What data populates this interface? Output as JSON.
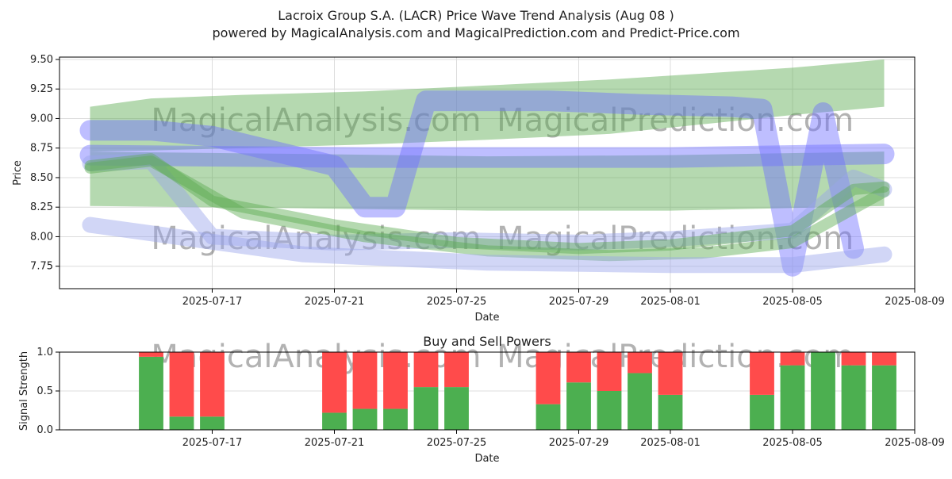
{
  "title": "Lacroix Group S.A. (LACR) Price Wave Trend Analysis (Aug 08 )",
  "subtitle": "powered by MagicalAnalysis.com and MagicalPrediction.com and Predict-Price.com",
  "watermarks": [
    "MagicalAnalysis.com",
    "MagicalPrediction.com"
  ],
  "colors": {
    "buy": "#4caf50",
    "sell": "#ff4b4b",
    "blue_band": "#6f6fff",
    "green_band": "#5aaa50"
  },
  "chart_data": [
    {
      "type": "area",
      "title": "",
      "xlabel": "Date",
      "ylabel": "Price",
      "xlim": [
        "2025-07-12",
        "2025-08-09"
      ],
      "ylim": [
        7.56,
        9.52
      ],
      "x_ticks": [
        "2025-07-17",
        "2025-07-21",
        "2025-07-25",
        "2025-07-29",
        "2025-08-01",
        "2025-08-05",
        "2025-08-09"
      ],
      "y_ticks": [
        7.75,
        8.0,
        8.25,
        8.5,
        8.75,
        9.0,
        9.25,
        9.5
      ],
      "grid": true,
      "series": [
        {
          "kind": "band",
          "color": "green",
          "x": [
            "2025-07-13",
            "2025-07-15",
            "2025-07-18",
            "2025-07-22",
            "2025-07-26",
            "2025-07-30",
            "2025-08-02",
            "2025-08-05",
            "2025-08-08"
          ],
          "upper": [
            9.1,
            9.17,
            9.2,
            9.23,
            9.28,
            9.33,
            9.38,
            9.43,
            9.5
          ],
          "lower": [
            8.72,
            8.73,
            8.75,
            8.78,
            8.82,
            8.87,
            8.95,
            9.03,
            9.1
          ]
        },
        {
          "kind": "band",
          "color": "green",
          "x": [
            "2025-07-13",
            "2025-07-20",
            "2025-07-26",
            "2025-08-01",
            "2025-08-08"
          ],
          "upper": [
            8.72,
            8.7,
            8.68,
            8.69,
            8.72
          ],
          "lower": [
            8.26,
            8.24,
            8.22,
            8.22,
            8.26
          ]
        },
        {
          "kind": "line",
          "color": "blue",
          "x": [
            "2025-07-13",
            "2025-07-15",
            "2025-07-17",
            "2025-07-21",
            "2025-07-22",
            "2025-07-23",
            "2025-07-24",
            "2025-07-28",
            "2025-07-31",
            "2025-08-03",
            "2025-08-04",
            "2025-08-05",
            "2025-08-06",
            "2025-08-07"
          ],
          "y": [
            8.9,
            8.9,
            8.85,
            8.6,
            8.25,
            8.25,
            9.15,
            9.15,
            9.12,
            9.1,
            9.08,
            7.75,
            9.05,
            7.9
          ]
        },
        {
          "kind": "line",
          "color": "blue",
          "x": [
            "2025-07-13",
            "2025-07-22",
            "2025-08-01",
            "2025-08-08"
          ],
          "y": [
            8.69,
            8.67,
            8.67,
            8.7
          ]
        },
        {
          "kind": "line",
          "color": "lightblue",
          "x": [
            "2025-07-13",
            "2025-07-15",
            "2025-07-17",
            "2025-07-21",
            "2025-07-25",
            "2025-07-29",
            "2025-08-01",
            "2025-08-05",
            "2025-08-07",
            "2025-08-08"
          ],
          "y": [
            8.62,
            8.64,
            8.0,
            7.95,
            7.97,
            7.95,
            7.98,
            8.05,
            8.5,
            8.4
          ]
        },
        {
          "kind": "line",
          "color": "green",
          "x": [
            "2025-07-13",
            "2025-07-15",
            "2025-07-17",
            "2025-07-21",
            "2025-07-25",
            "2025-07-29",
            "2025-08-01",
            "2025-08-05",
            "2025-08-07",
            "2025-08-08"
          ],
          "y": [
            8.6,
            8.66,
            8.3,
            8.1,
            7.95,
            7.9,
            7.93,
            8.05,
            8.4,
            8.42
          ]
        },
        {
          "kind": "line",
          "color": "green",
          "x": [
            "2025-07-13",
            "2025-07-15",
            "2025-07-18",
            "2025-07-22",
            "2025-07-26",
            "2025-07-30",
            "2025-08-02",
            "2025-08-05",
            "2025-08-08"
          ],
          "y": [
            8.58,
            8.64,
            8.2,
            8.0,
            7.88,
            7.84,
            7.86,
            7.95,
            8.38
          ]
        },
        {
          "kind": "line",
          "color": "lightblue",
          "x": [
            "2025-07-13",
            "2025-07-20",
            "2025-07-26",
            "2025-08-01",
            "2025-08-05",
            "2025-08-08"
          ],
          "y": [
            8.1,
            7.85,
            7.78,
            7.76,
            7.76,
            7.85
          ]
        }
      ]
    },
    {
      "type": "bar",
      "title": "Buy and Sell Powers",
      "xlabel": "Date",
      "ylabel": "Signal Strength",
      "xlim": [
        "2025-07-12",
        "2025-08-09"
      ],
      "ylim": [
        0,
        1
      ],
      "x_ticks": [
        "2025-07-17",
        "2025-07-21",
        "2025-07-25",
        "2025-07-29",
        "2025-08-01",
        "2025-08-05",
        "2025-08-09"
      ],
      "y_ticks": [
        "0.0",
        "0.5",
        "1.0"
      ],
      "grid": true,
      "categories": [
        "2025-07-15",
        "2025-07-16",
        "2025-07-17",
        "2025-07-21",
        "2025-07-22",
        "2025-07-23",
        "2025-07-24",
        "2025-07-25",
        "2025-07-28",
        "2025-07-29",
        "2025-07-30",
        "2025-07-31",
        "2025-08-01",
        "2025-08-04",
        "2025-08-05",
        "2025-08-06",
        "2025-08-07",
        "2025-08-08"
      ],
      "series": [
        {
          "name": "Buy",
          "values": [
            0.94,
            0.17,
            0.17,
            0.22,
            0.27,
            0.27,
            0.55,
            0.55,
            0.33,
            0.61,
            0.5,
            0.73,
            0.45,
            0.45,
            0.83,
            1.0,
            0.83,
            0.83
          ]
        },
        {
          "name": "Sell",
          "values": [
            0.06,
            0.83,
            0.83,
            0.78,
            0.73,
            0.73,
            0.45,
            0.45,
            0.67,
            0.39,
            0.5,
            0.27,
            0.55,
            0.55,
            0.17,
            0.0,
            0.17,
            0.17
          ]
        }
      ]
    }
  ]
}
